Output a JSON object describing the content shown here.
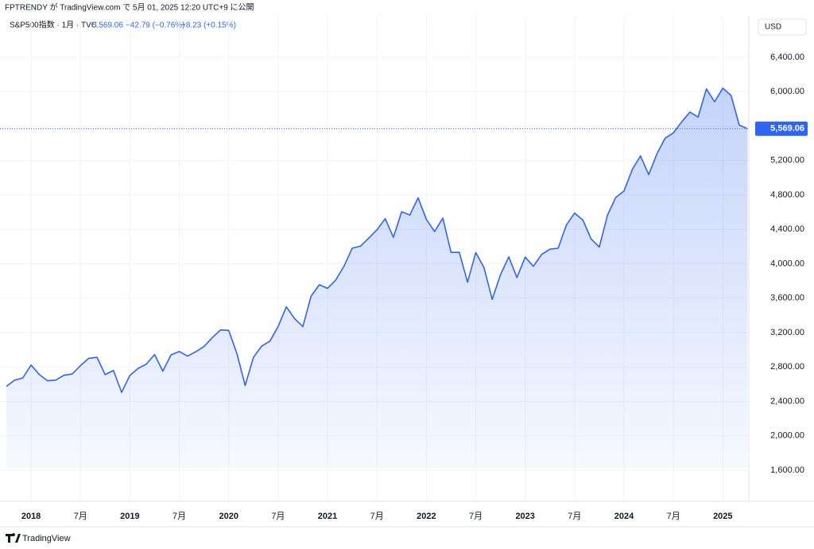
{
  "chart_data": {
    "type": "area",
    "publisher": "FPTRENDY が TradingView.com で 5月 01, 2025 12:20 UTC+9 に公開",
    "symbol": "S&P500指数 · 1月 · TVC",
    "last_value": 5569.06,
    "last_value_label": "5,569.06",
    "change_texts": [
      "−42.79 (−0.76%)",
      "+8.23 (+0.15%)"
    ],
    "currency": "USD",
    "brand": "TradingView",
    "color": "#2e64f0",
    "categories": [
      null,
      null,
      null,
      "2018",
      null,
      null,
      null,
      null,
      null,
      "7月",
      null,
      null,
      null,
      null,
      null,
      "2019",
      null,
      null,
      null,
      null,
      null,
      "7月",
      null,
      null,
      null,
      null,
      null,
      "2020",
      null,
      null,
      null,
      null,
      null,
      "7月",
      null,
      null,
      null,
      null,
      null,
      "2021",
      null,
      null,
      null,
      null,
      null,
      "7月",
      null,
      null,
      null,
      null,
      null,
      "2022",
      null,
      null,
      null,
      null,
      null,
      "7月",
      null,
      null,
      null,
      null,
      null,
      "2023",
      null,
      null,
      null,
      null,
      null,
      "7月",
      null,
      null,
      null,
      null,
      null,
      "2024",
      null,
      null,
      null,
      null,
      null,
      "7月",
      null,
      null,
      null,
      null,
      null,
      "2025",
      null,
      null,
      null
    ],
    "values": [
      2575,
      2647,
      2673,
      2823,
      2713,
      2640,
      2648,
      2705,
      2718,
      2816,
      2901,
      2913,
      2711,
      2760,
      2506,
      2704,
      2784,
      2834,
      2945,
      2752,
      2941,
      2980,
      2926,
      2977,
      3037,
      3141,
      3231,
      3226,
      2954,
      2585,
      2912,
      3044,
      3100,
      3271,
      3500,
      3363,
      3270,
      3622,
      3756,
      3714,
      3811,
      3973,
      4181,
      4204,
      4298,
      4395,
      4523,
      4308,
      4605,
      4567,
      4766,
      4516,
      4374,
      4530,
      4132,
      4132,
      3785,
      4130,
      3955,
      3586,
      3872,
      4080,
      3840,
      4077,
      3970,
      4109,
      4169,
      4180,
      4450,
      4589,
      4508,
      4288,
      4194,
      4568,
      4770,
      4846,
      5096,
      5254,
      5036,
      5278,
      5460,
      5522,
      5648,
      5762,
      5705,
      6032,
      5882,
      6041,
      5955,
      5612,
      5569
    ],
    "ylim": [
      1240,
      6880
    ],
    "yticks": [
      {
        "value": 1600,
        "label": "1,600.00"
      },
      {
        "value": 2000,
        "label": "2,000.00"
      },
      {
        "value": 2400,
        "label": "2,400.00"
      },
      {
        "value": 2800,
        "label": "2,800.00"
      },
      {
        "value": 3200,
        "label": "3,200.00"
      },
      {
        "value": 3600,
        "label": "3,600.00"
      },
      {
        "value": 4000,
        "label": "4,000.00"
      },
      {
        "value": 4400,
        "label": "4,400.00"
      },
      {
        "value": 4800,
        "label": "4,800.00"
      },
      {
        "value": 5200,
        "label": "5,200.00"
      },
      {
        "value": 5600,
        "label": "5,600.00"
      },
      {
        "value": 6000,
        "label": "6,000.00"
      },
      {
        "value": 6400,
        "label": "6,400.00"
      }
    ],
    "grid": true
  }
}
